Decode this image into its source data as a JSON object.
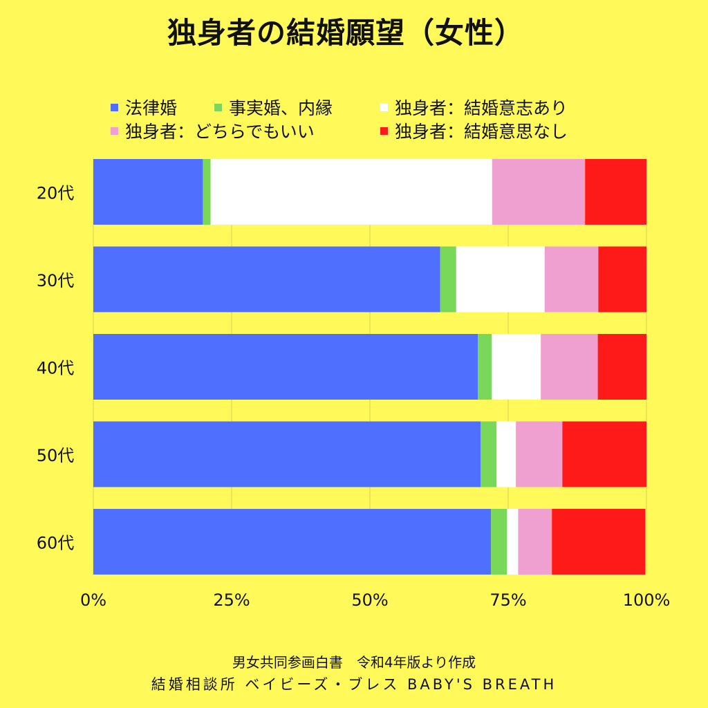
{
  "chart_data": {
    "type": "bar",
    "orientation": "horizontal",
    "stacked": true,
    "normalized": true,
    "title": "独身者の結婚願望（女性）",
    "categories": [
      "20代",
      "30代",
      "40代",
      "50代",
      "60代"
    ],
    "xlim": [
      0,
      100
    ],
    "xticks": [
      "0%",
      "25%",
      "50%",
      "75%",
      "100%"
    ],
    "grid": "vertical",
    "legend_position": "top",
    "series": [
      {
        "name": "法律婚",
        "color": "#4F6FFF",
        "values": [
          19.8,
          62.7,
          69.5,
          70.0,
          71.9
        ]
      },
      {
        "name": "事実婚、内縁",
        "color": "#79D85A",
        "values": [
          1.4,
          2.9,
          2.5,
          2.9,
          2.9
        ]
      },
      {
        "name": "独身者：結婚意志あり",
        "color": "#FFFFFF",
        "values": [
          50.9,
          16.0,
          8.9,
          3.5,
          2.0
        ]
      },
      {
        "name": "独身者：どちらでもいい",
        "color": "#F0A0D0",
        "values": [
          16.8,
          9.7,
          10.3,
          8.4,
          6.1
        ]
      },
      {
        "name": "独身者：結婚意思なし",
        "color": "#FF1A1A",
        "values": [
          11.1,
          8.7,
          8.8,
          15.2,
          16.9
        ]
      }
    ]
  },
  "footer": {
    "source": "男女共同参画白書　令和4年版より作成",
    "brand": "結婚相談所 ベイビーズ・ブレス BABY'S BREATH"
  }
}
